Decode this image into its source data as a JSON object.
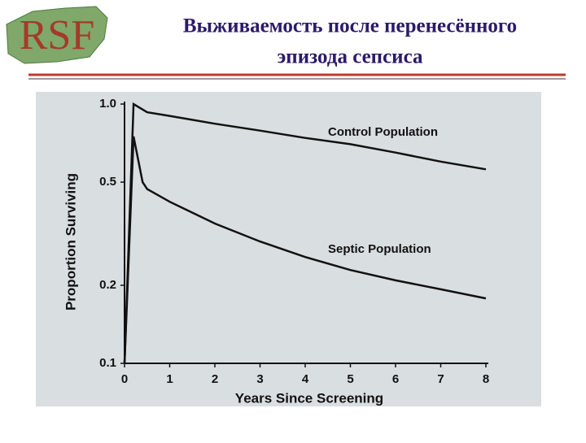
{
  "logo": "RSF",
  "title_lines": [
    "Выживаемость после перенесённого",
    "эпизода сепсиса"
  ],
  "chart_data": {
    "type": "line",
    "x_label": "Years Since Screening",
    "y_label": "Proportion Surviving",
    "log_y": true,
    "xlim": [
      0,
      8
    ],
    "xticks": [
      0,
      1,
      2,
      3,
      4,
      5,
      6,
      7,
      8
    ],
    "ylim": [
      0.1,
      1
    ],
    "yticks": [
      0.1,
      0.2,
      0.5,
      {
        "value": 1,
        "label": "1.0"
      }
    ],
    "series": [
      {
        "name": "Control Population",
        "color": "#111111",
        "x": [
          0,
          0.2,
          0.5,
          1,
          2,
          3,
          4,
          5,
          6,
          7,
          8
        ],
        "values": [
          0.1,
          1.0,
          0.93,
          0.9,
          0.84,
          0.79,
          0.74,
          0.7,
          0.65,
          0.6,
          0.56
        ]
      },
      {
        "name": "Septic Population",
        "color": "#111111",
        "x": [
          0,
          0.2,
          0.4,
          0.5,
          1,
          2,
          3,
          4,
          5,
          6,
          7,
          8
        ],
        "values": [
          0.1,
          0.75,
          0.5,
          0.47,
          0.42,
          0.346,
          0.295,
          0.257,
          0.229,
          0.209,
          0.193,
          0.178
        ]
      }
    ]
  }
}
